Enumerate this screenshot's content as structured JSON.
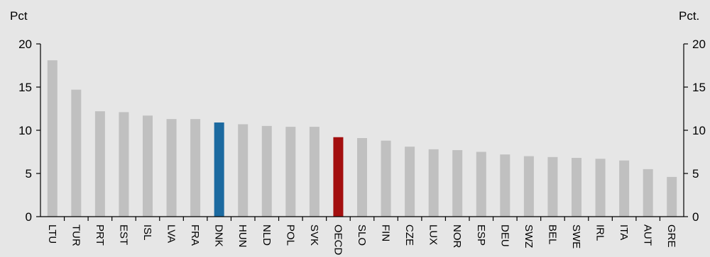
{
  "chart_data": {
    "type": "bar",
    "title": "",
    "xlabel": "",
    "ylabel_left": "Pct",
    "ylabel_right": "Pct.",
    "ylim": [
      0,
      20
    ],
    "yticks": [
      0,
      5,
      10,
      15,
      20
    ],
    "grid": false,
    "categories": [
      "LTU",
      "TUR",
      "PRT",
      "EST",
      "ISL",
      "LVA",
      "FRA",
      "DNK",
      "HUN",
      "NLD",
      "POL",
      "SVK",
      "OECD",
      "SLO",
      "FIN",
      "CZE",
      "LUX",
      "NOR",
      "ESP",
      "DEU",
      "SWZ",
      "BEL",
      "SWE",
      "IRL",
      "ITA",
      "AUT",
      "GRE"
    ],
    "values": [
      18.1,
      14.7,
      12.2,
      12.1,
      11.7,
      11.3,
      11.3,
      10.9,
      10.7,
      10.5,
      10.4,
      10.4,
      9.2,
      9.1,
      8.8,
      8.1,
      7.8,
      7.7,
      7.5,
      7.2,
      7.0,
      6.9,
      6.8,
      6.7,
      6.5,
      5.5,
      4.6
    ],
    "colors": {
      "default": "#c0c0c0",
      "highlight": {
        "DNK": "#1c6aa0",
        "OECD": "#a30f0f"
      },
      "background": "#e6e6e6"
    }
  }
}
